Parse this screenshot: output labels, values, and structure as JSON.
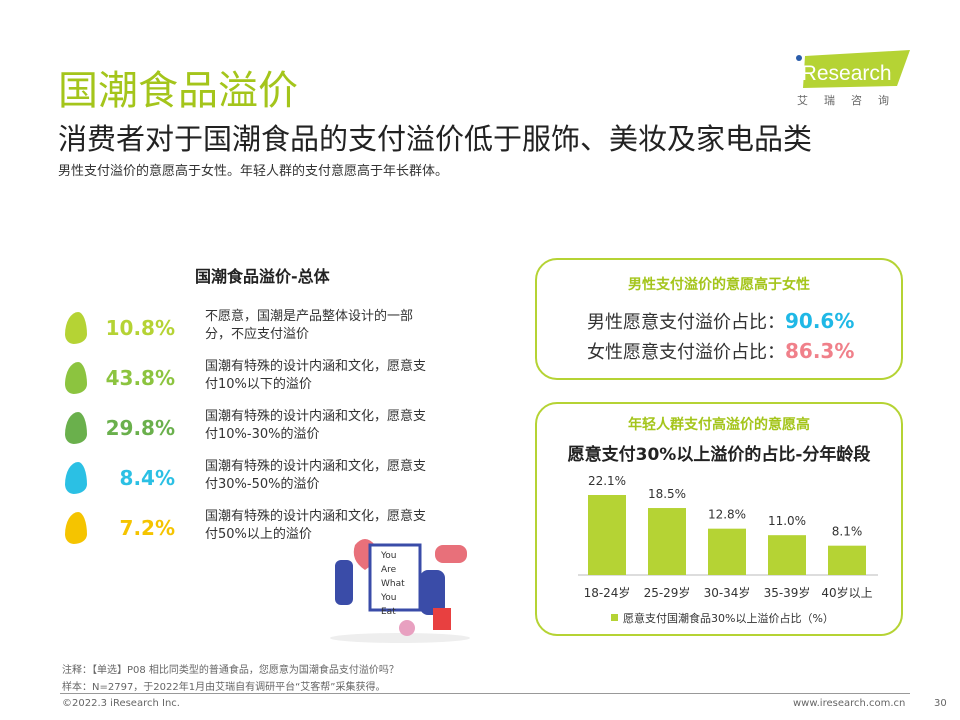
{
  "header": {
    "title": "国潮食品溢价",
    "subtitle": "消费者对于国潮食品的支付溢价低于服饰、美妆及家电品类",
    "summary": "男性支付溢价的意愿高于女性。年轻人群的支付意愿高于年长群体。"
  },
  "logo": {
    "brand": "iResearch",
    "sub": "艾瑞咨询"
  },
  "overall": {
    "title": "国潮食品溢价-总体",
    "items": [
      {
        "pct": "10.8%",
        "label": "不愿意，国潮是产品整体设计的一部分，不应支付溢价",
        "color": "#b5d334"
      },
      {
        "pct": "43.8%",
        "label": "国潮有特殊的设计内涵和文化，愿意支付10%以下的溢价",
        "color": "#8cc43f"
      },
      {
        "pct": "29.8%",
        "label": "国潮有特殊的设计内涵和文化，愿意支付10%-30%的溢价",
        "color": "#6ab04c"
      },
      {
        "pct": "8.4%",
        "label": "国潮有特殊的设计内涵和文化，愿意支付30%-50%的溢价",
        "color": "#2bc0e4"
      },
      {
        "pct": "7.2%",
        "label": "国潮有特殊的设计内涵和文化，愿意支付50%以上的溢价",
        "color": "#f5c400"
      }
    ]
  },
  "gender": {
    "title": "男性支付溢价的意愿高于女性",
    "male_label": "男性愿意支付溢价占比：",
    "male_value": "90.6%",
    "female_label": "女性愿意支付溢价占比：",
    "female_value": "86.3%"
  },
  "illustration": {
    "text": "You Are What You Eat"
  },
  "chart_data": {
    "type": "bar",
    "box_title": "年轻人群支付高溢价的意愿高",
    "title": "愿意支付30%以上溢价的占比-分年龄段",
    "categories": [
      "18-24岁",
      "25-29岁",
      "30-34岁",
      "35-39岁",
      "40岁以上"
    ],
    "values": [
      22.1,
      18.5,
      12.8,
      11.0,
      8.1
    ],
    "labels": [
      "22.1%",
      "18.5%",
      "12.8%",
      "11.0%",
      "8.1%"
    ],
    "legend": "愿意支付国潮食品30%以上溢价占比（%）",
    "color": "#b5d334",
    "ylim": [
      0,
      25
    ]
  },
  "footer": {
    "note": "注释：【单选】P08 相比同类型的普通食品，您愿意为国潮食品支付溢价吗？",
    "sample": "样本：N=2797，于2022年1月由艾瑞自有调研平台“艾客帮”采集获得。",
    "copyright": "©2022.3 iResearch Inc.",
    "site": "www.iresearch.com.cn",
    "page": "30"
  }
}
